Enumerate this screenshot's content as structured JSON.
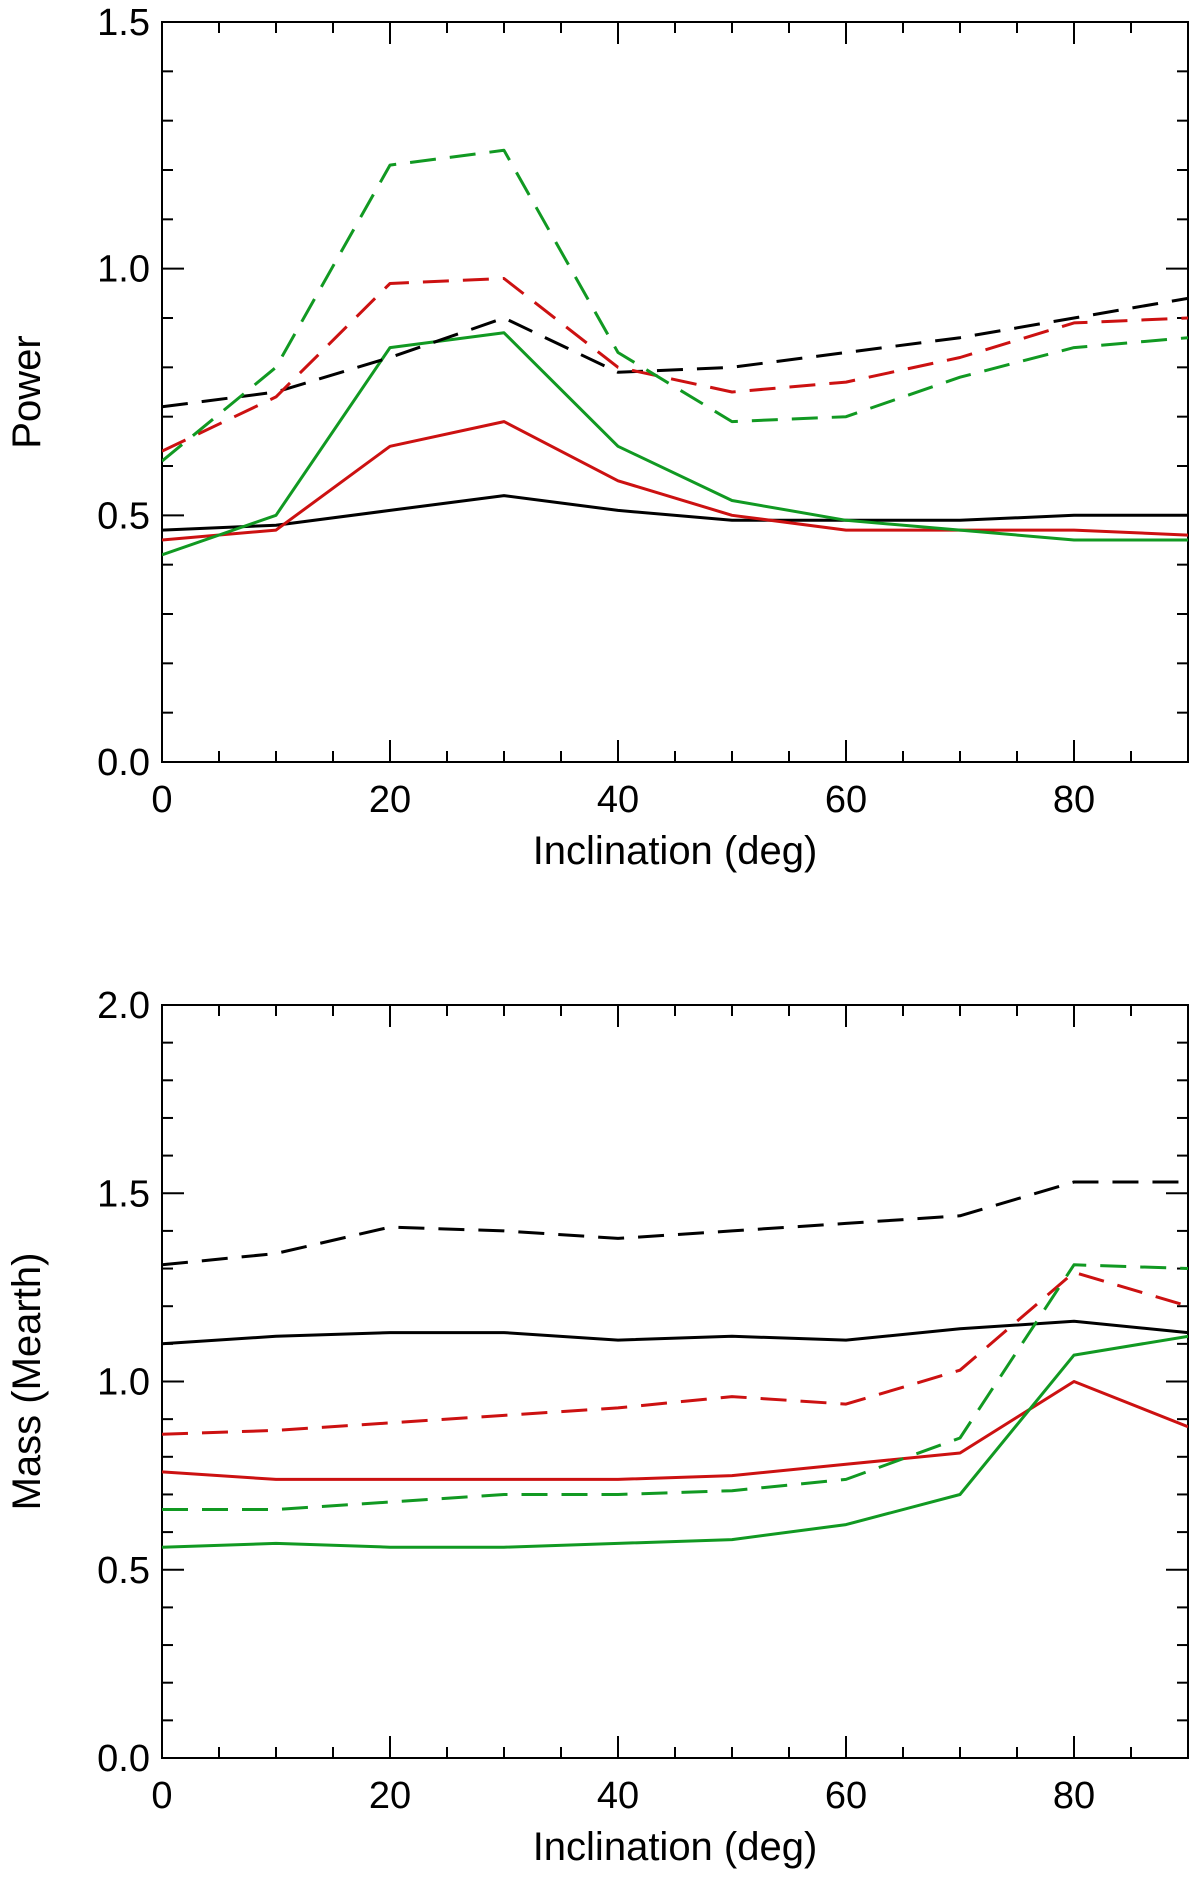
{
  "chart_data": [
    {
      "type": "line",
      "xlabel": "Inclination (deg)",
      "ylabel": "Power",
      "xlim": [
        0,
        90
      ],
      "ylim": [
        0,
        1.5
      ],
      "xticks": [
        0,
        20,
        40,
        60,
        80
      ],
      "xtick_labels": [
        "0",
        "20",
        "40",
        "60",
        "80"
      ],
      "yticks": [
        0,
        0.5,
        1.0,
        1.5
      ],
      "ytick_labels": [
        "0.0",
        "0.5",
        "1.0",
        "1.5"
      ],
      "grid": false,
      "series": [
        {
          "color": "#000000",
          "dash": "solid",
          "x": [
            0,
            10,
            20,
            30,
            40,
            50,
            60,
            70,
            80,
            90
          ],
          "y": [
            0.47,
            0.48,
            0.51,
            0.54,
            0.51,
            0.49,
            0.49,
            0.49,
            0.5,
            0.5
          ]
        },
        {
          "color": "#cc1111",
          "dash": "solid",
          "x": [
            0,
            10,
            20,
            30,
            40,
            50,
            60,
            70,
            80,
            90
          ],
          "y": [
            0.45,
            0.47,
            0.64,
            0.69,
            0.57,
            0.5,
            0.47,
            0.47,
            0.47,
            0.46
          ]
        },
        {
          "color": "#119922",
          "dash": "solid",
          "x": [
            0,
            10,
            20,
            30,
            40,
            50,
            60,
            70,
            80,
            90
          ],
          "y": [
            0.42,
            0.5,
            0.84,
            0.87,
            0.64,
            0.53,
            0.49,
            0.47,
            0.45,
            0.45
          ]
        },
        {
          "color": "#000000",
          "dash": "dashed",
          "x": [
            0,
            10,
            20,
            30,
            40,
            50,
            60,
            70,
            80,
            90
          ],
          "y": [
            0.72,
            0.75,
            0.82,
            0.9,
            0.79,
            0.8,
            0.83,
            0.86,
            0.9,
            0.94
          ]
        },
        {
          "color": "#cc1111",
          "dash": "dashed",
          "x": [
            0,
            10,
            20,
            30,
            40,
            50,
            60,
            70,
            80,
            90
          ],
          "y": [
            0.63,
            0.74,
            0.97,
            0.98,
            0.8,
            0.75,
            0.77,
            0.82,
            0.89,
            0.9
          ]
        },
        {
          "color": "#119922",
          "dash": "dashed",
          "x": [
            0,
            10,
            20,
            30,
            40,
            50,
            60,
            70,
            80,
            90
          ],
          "y": [
            0.61,
            0.8,
            1.21,
            1.24,
            0.83,
            0.69,
            0.7,
            0.78,
            0.84,
            0.86
          ]
        }
      ]
    },
    {
      "type": "line",
      "xlabel": "Inclination (deg)",
      "ylabel": "Mass (Mearth)",
      "xlim": [
        0,
        90
      ],
      "ylim": [
        0,
        2.0
      ],
      "xticks": [
        0,
        20,
        40,
        60,
        80
      ],
      "xtick_labels": [
        "0",
        "20",
        "40",
        "60",
        "80"
      ],
      "yticks": [
        0,
        0.5,
        1.0,
        1.5,
        2.0
      ],
      "ytick_labels": [
        "0.0",
        "0.5",
        "1.0",
        "1.5",
        "2.0"
      ],
      "grid": false,
      "series": [
        {
          "color": "#000000",
          "dash": "solid",
          "x": [
            0,
            10,
            20,
            30,
            40,
            50,
            60,
            70,
            80,
            90
          ],
          "y": [
            1.1,
            1.12,
            1.13,
            1.13,
            1.11,
            1.12,
            1.11,
            1.14,
            1.16,
            1.13
          ]
        },
        {
          "color": "#cc1111",
          "dash": "solid",
          "x": [
            0,
            10,
            20,
            30,
            40,
            50,
            60,
            70,
            80,
            90
          ],
          "y": [
            0.76,
            0.74,
            0.74,
            0.74,
            0.74,
            0.75,
            0.78,
            0.81,
            1.0,
            0.88
          ]
        },
        {
          "color": "#119922",
          "dash": "solid",
          "x": [
            0,
            10,
            20,
            30,
            40,
            50,
            60,
            70,
            80,
            90
          ],
          "y": [
            0.56,
            0.57,
            0.56,
            0.56,
            0.57,
            0.58,
            0.62,
            0.7,
            1.07,
            1.12
          ]
        },
        {
          "color": "#000000",
          "dash": "dashed",
          "x": [
            0,
            10,
            20,
            30,
            40,
            50,
            60,
            70,
            80,
            90
          ],
          "y": [
            1.31,
            1.34,
            1.41,
            1.4,
            1.38,
            1.4,
            1.42,
            1.44,
            1.53,
            1.53
          ]
        },
        {
          "color": "#cc1111",
          "dash": "dashed",
          "x": [
            0,
            10,
            20,
            30,
            40,
            50,
            60,
            70,
            80,
            90
          ],
          "y": [
            0.86,
            0.87,
            0.89,
            0.91,
            0.93,
            0.96,
            0.94,
            1.03,
            1.29,
            1.2
          ]
        },
        {
          "color": "#119922",
          "dash": "dashed",
          "x": [
            0,
            10,
            20,
            30,
            40,
            50,
            60,
            70,
            80,
            90
          ],
          "y": [
            0.66,
            0.66,
            0.68,
            0.7,
            0.7,
            0.71,
            0.74,
            0.85,
            1.31,
            1.3
          ]
        }
      ]
    }
  ]
}
